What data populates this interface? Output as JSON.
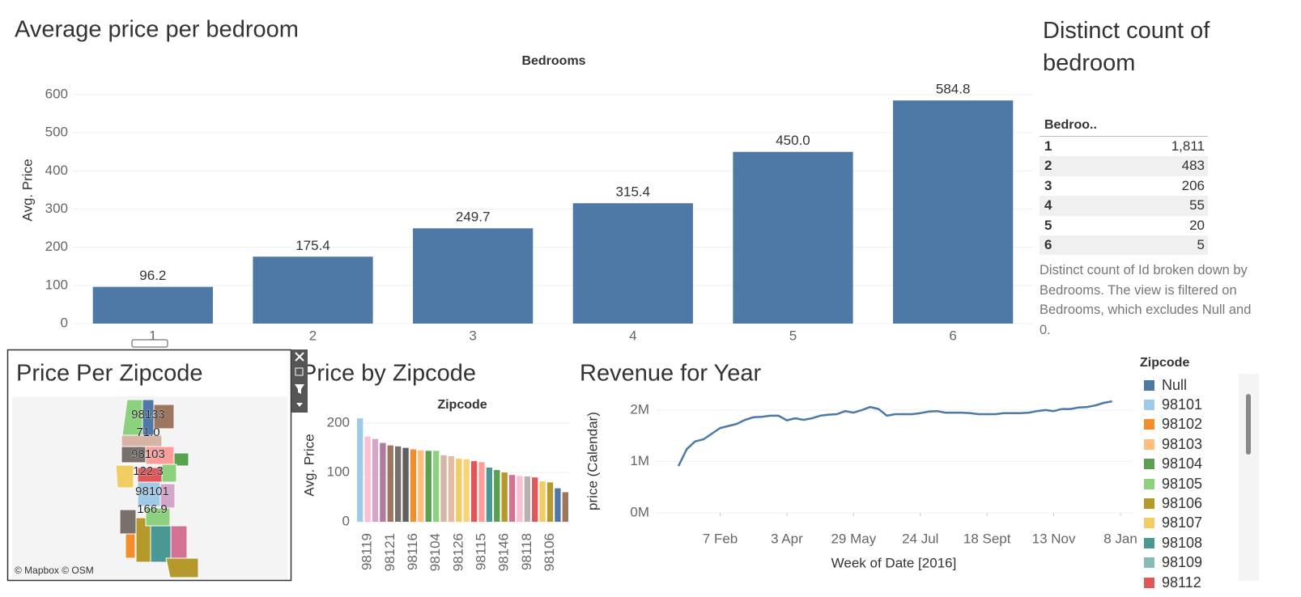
{
  "chart_data": [
    {
      "type": "bar",
      "title": "Average price per bedroom",
      "header": "Bedrooms",
      "y_label": "Avg. Price",
      "categories": [
        "1",
        "2",
        "3",
        "4",
        "5",
        "6"
      ],
      "values": [
        96.2,
        175.4,
        249.7,
        315.4,
        450,
        584.8
      ],
      "value_labels": [
        "96.2",
        "175.4",
        "249.7",
        "315.4",
        "450.0",
        "584.8"
      ],
      "color": "#4e79a7",
      "ylim": [
        0,
        600
      ],
      "yticks": [
        0,
        100,
        200,
        300,
        400,
        500,
        600
      ],
      "grid": true
    },
    {
      "type": "bar",
      "title": "Price by Zipcode",
      "header": "Zipcode",
      "y_label": "Avg. Price",
      "categories": [
        null,
        "98119",
        null,
        null,
        "98121",
        null,
        null,
        "98116",
        null,
        null,
        "98104",
        null,
        null,
        "98126",
        null,
        null,
        "98115",
        null,
        null,
        "98146",
        null,
        null,
        "98118",
        null,
        null,
        "98106",
        null,
        null
      ],
      "values": [
        210,
        173,
        168,
        160,
        155,
        153,
        150,
        147,
        145,
        144,
        144,
        135,
        133,
        128,
        127,
        123,
        121,
        110,
        105,
        100,
        95,
        93,
        92,
        90,
        82,
        80,
        68,
        60
      ],
      "colors": [
        "#a0cbe8",
        "#fabfd2",
        "#d4a6c8",
        "#b07aa1",
        "#9d7660",
        "#79706e",
        "#5f5f5f",
        "#f28e2b",
        "#ffbe7d",
        "#59a14f",
        "#8cd17d",
        "#d7b5a6",
        "#e8b9a3",
        "#f1ce63",
        "#f5d47a",
        "#e15759",
        "#ff9d9a",
        "#499894",
        "#59a14f",
        "#b6992d",
        "#d37295",
        "#fabfd2",
        "#bab0ac",
        "#e15759",
        "#f1ce63",
        "#b6992d",
        "#4e79a7",
        "#9d7660"
      ],
      "ylim": [
        0,
        220
      ],
      "yticks": [
        0,
        100,
        200
      ],
      "grid": true
    },
    {
      "type": "line",
      "title": "Revenue for Year",
      "y_label": "price (Calendar)",
      "x_label": "Week of Date [2016]",
      "values": [
        910000,
        1240000,
        1390000,
        1430000,
        1540000,
        1650000,
        1690000,
        1730000,
        1810000,
        1860000,
        1870000,
        1890000,
        1890000,
        1800000,
        1840000,
        1810000,
        1840000,
        1890000,
        1910000,
        1920000,
        1980000,
        1950000,
        2000000,
        2060000,
        2020000,
        1890000,
        1920000,
        1920000,
        1920000,
        1940000,
        1970000,
        1980000,
        1950000,
        1950000,
        1950000,
        1940000,
        1920000,
        1920000,
        1920000,
        1940000,
        1940000,
        1940000,
        1950000,
        1980000,
        2000000,
        1980000,
        2020000,
        2020000,
        2050000,
        2060000,
        2090000,
        2140000,
        2170000
      ],
      "color": "#4e79a7",
      "xlim": [
        0,
        53
      ],
      "xticks": [
        {
          "value": 5,
          "label": "7 Feb"
        },
        {
          "value": 13,
          "label": "3 Apr"
        },
        {
          "value": 21,
          "label": "29 May"
        },
        {
          "value": 29,
          "label": "24 Jul"
        },
        {
          "value": 37,
          "label": "18 Sept"
        },
        {
          "value": 45,
          "label": "13 Nov"
        },
        {
          "value": 53,
          "label": "8 Jan"
        }
      ],
      "ylim": [
        0,
        2250000
      ],
      "yticks": [
        {
          "value": 0,
          "label": "0M"
        },
        {
          "value": 1000000,
          "label": "1M"
        },
        {
          "value": 2000000,
          "label": "2M"
        }
      ],
      "grid": true
    }
  ],
  "table": {
    "title": "Distinct count of bedroom",
    "header": "Bedroo..",
    "rows": [
      [
        "1",
        "1,811"
      ],
      [
        "2",
        "483"
      ],
      [
        "3",
        "206"
      ],
      [
        "4",
        "55"
      ],
      [
        "5",
        "20"
      ],
      [
        "6",
        "5"
      ]
    ],
    "caption": "Distinct count of Id broken down by Bedrooms. The view is filtered on Bedrooms, which excludes Null and 0."
  },
  "map": {
    "title": "Price Per Zipcode",
    "labels": [
      "98133",
      "71.0",
      "98103",
      "122.3",
      "98101",
      "166.9"
    ],
    "credit": "© Mapbox © OSM"
  },
  "legend": {
    "title": "Zipcode",
    "items": [
      {
        "name": "Null",
        "color": "#4e79a7"
      },
      {
        "name": "98101",
        "color": "#a0cbe8"
      },
      {
        "name": "98102",
        "color": "#f28e2b"
      },
      {
        "name": "98103",
        "color": "#ffbe7d"
      },
      {
        "name": "98104",
        "color": "#59a14f"
      },
      {
        "name": "98105",
        "color": "#8cd17d"
      },
      {
        "name": "98106",
        "color": "#b6992d"
      },
      {
        "name": "98107",
        "color": "#f1ce63"
      },
      {
        "name": "98108",
        "color": "#499894"
      },
      {
        "name": "98109",
        "color": "#86bcb6"
      },
      {
        "name": "98112",
        "color": "#e15759"
      }
    ]
  }
}
